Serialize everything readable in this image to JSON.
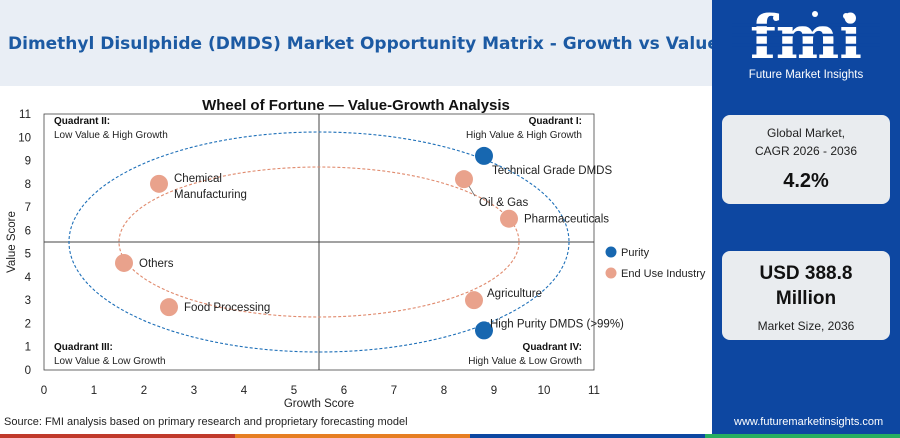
{
  "header": {
    "title": "Dimethyl Disulphide (DMDS) Market Opportunity Matrix - Growth vs Value"
  },
  "logo": {
    "wordmark": "fmi",
    "tagline": "Future Market Insights"
  },
  "sidebar": {
    "cagr": {
      "label_line1": "Global Market,",
      "label_line2": "CAGR 2026 - 2036",
      "value": "4.2%"
    },
    "market_size": {
      "value_line1": "USD 388.8",
      "value_line2": "Million",
      "label": "Market Size, 2036"
    }
  },
  "footer": {
    "source": "Source: FMI analysis based on primary research and proprietary forecasting model",
    "url": "www.futuremarketinsights.com"
  },
  "colors": {
    "navy": "#0d47a1",
    "title_blue": "#1c5aa3",
    "purity": "#1767b0",
    "end_use": "#e9a28c",
    "outer_ellipse": "#1d6fb8",
    "inner_ellipse": "#e08a6d",
    "footer_red": "#c0392b",
    "footer_orange": "#e67e22",
    "footer_navy": "#0d47a1",
    "footer_green": "#27ae60"
  },
  "chart_data": {
    "type": "scatter",
    "title": "Wheel of Fortune — Value-Growth Analysis",
    "xlabel": "Growth Score",
    "ylabel": "Value Score",
    "xlim": [
      0,
      11
    ],
    "ylim": [
      0,
      11
    ],
    "xticks": [
      0,
      1,
      2,
      3,
      4,
      5,
      6,
      7,
      8,
      9,
      10,
      11
    ],
    "yticks": [
      0,
      1,
      2,
      3,
      4,
      5,
      6,
      7,
      8,
      9,
      10,
      11
    ],
    "divider_x": 5.5,
    "divider_y": 5.5,
    "grid": false,
    "legend_position": "right",
    "quadrants": [
      {
        "title": "Quadrant II:",
        "subtitle": "Low Value & High Growth",
        "position": "top-left"
      },
      {
        "title": "Quadrant I:",
        "subtitle": "High Value & High Growth",
        "position": "top-right"
      },
      {
        "title": "Quadrant III:",
        "subtitle": "Low Value & Low Growth",
        "position": "bottom-left"
      },
      {
        "title": "Quadrant IV:",
        "subtitle": "High Value & Low Growth",
        "position": "bottom-right"
      }
    ],
    "series": [
      {
        "name": "Purity",
        "points": [
          {
            "label": "Technical Grade DMDS",
            "x": 8.8,
            "y": 9.2
          },
          {
            "label": "High Purity DMDS (>99%)",
            "x": 8.8,
            "y": 1.7
          }
        ]
      },
      {
        "name": "End Use Industry",
        "points": [
          {
            "label": "Chemical Manufacturing",
            "x": 2.3,
            "y": 8.0
          },
          {
            "label": "Oil & Gas",
            "x": 8.4,
            "y": 8.2
          },
          {
            "label": "Pharmaceuticals",
            "x": 9.3,
            "y": 6.5
          },
          {
            "label": "Others",
            "x": 1.6,
            "y": 4.6
          },
          {
            "label": "Agriculture",
            "x": 8.6,
            "y": 3.0
          },
          {
            "label": "Food Processing",
            "x": 2.5,
            "y": 2.7
          }
        ]
      }
    ]
  }
}
